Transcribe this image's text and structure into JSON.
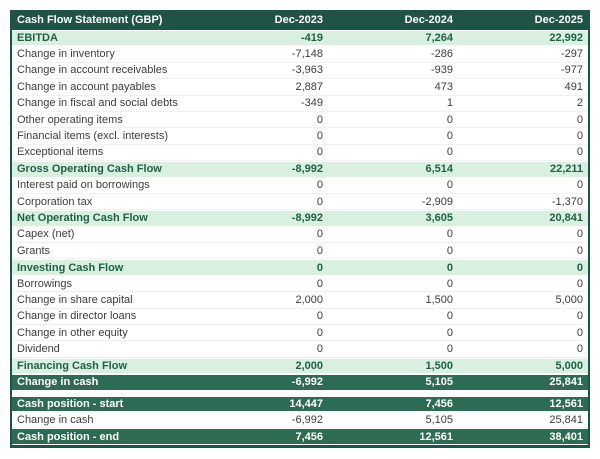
{
  "table": {
    "title": "Cash Flow Statement (GBP)",
    "columns": [
      "Dec-2023",
      "Dec-2024",
      "Dec-2025"
    ],
    "rows": [
      {
        "label": "EBITDA",
        "values": [
          "-419",
          "7,264",
          "22,992"
        ],
        "style": "highlight"
      },
      {
        "label": "Change in inventory",
        "values": [
          "-7,148",
          "-286",
          "-297"
        ],
        "style": "normal"
      },
      {
        "label": "Change in account receivables",
        "values": [
          "-3,963",
          "-939",
          "-977"
        ],
        "style": "normal"
      },
      {
        "label": "Change in account payables",
        "values": [
          "2,887",
          "473",
          "491"
        ],
        "style": "normal"
      },
      {
        "label": "Change in fiscal and social debts",
        "values": [
          "-349",
          "1",
          "2"
        ],
        "style": "normal"
      },
      {
        "label": "Other operating items",
        "values": [
          "0",
          "0",
          "0"
        ],
        "style": "normal"
      },
      {
        "label": "Financial items (excl. interests)",
        "values": [
          "0",
          "0",
          "0"
        ],
        "style": "normal"
      },
      {
        "label": "Exceptional items",
        "values": [
          "0",
          "0",
          "0"
        ],
        "style": "normal"
      },
      {
        "label": "Gross Operating Cash Flow",
        "values": [
          "-8,992",
          "6,514",
          "22,211"
        ],
        "style": "highlight"
      },
      {
        "label": "Interest paid on borrowings",
        "values": [
          "0",
          "0",
          "0"
        ],
        "style": "normal"
      },
      {
        "label": "Corporation tax",
        "values": [
          "0",
          "-2,909",
          "-1,370"
        ],
        "style": "normal"
      },
      {
        "label": "Net Operating Cash Flow",
        "values": [
          "-8,992",
          "3,605",
          "20,841"
        ],
        "style": "highlight"
      },
      {
        "label": "Capex (net)",
        "values": [
          "0",
          "0",
          "0"
        ],
        "style": "normal"
      },
      {
        "label": "Grants",
        "values": [
          "0",
          "0",
          "0"
        ],
        "style": "normal"
      },
      {
        "label": "Investing Cash Flow",
        "values": [
          "0",
          "0",
          "0"
        ],
        "style": "highlight"
      },
      {
        "label": "Borrowings",
        "values": [
          "0",
          "0",
          "0"
        ],
        "style": "normal"
      },
      {
        "label": "Change in share capital",
        "values": [
          "2,000",
          "1,500",
          "5,000"
        ],
        "style": "normal"
      },
      {
        "label": "Change in director loans",
        "values": [
          "0",
          "0",
          "0"
        ],
        "style": "normal"
      },
      {
        "label": "Change in other equity",
        "values": [
          "0",
          "0",
          "0"
        ],
        "style": "normal"
      },
      {
        "label": "Dividend",
        "values": [
          "0",
          "0",
          "0"
        ],
        "style": "normal"
      },
      {
        "label": "Financing Cash Flow",
        "values": [
          "2,000",
          "1,500",
          "5,000"
        ],
        "style": "highlight"
      },
      {
        "label": "Change in cash",
        "values": [
          "-6,992",
          "5,105",
          "25,841"
        ],
        "style": "summary"
      },
      {
        "style": "spacer"
      },
      {
        "label": "Cash position - start",
        "values": [
          "14,447",
          "7,456",
          "12,561"
        ],
        "style": "summary"
      },
      {
        "label": "Change in cash",
        "values": [
          "-6,992",
          "5,105",
          "25,841"
        ],
        "style": "normal"
      },
      {
        "label": "Cash position - end",
        "values": [
          "7,456",
          "12,561",
          "38,401"
        ],
        "style": "summary"
      }
    ]
  },
  "colors": {
    "header_bg": "#1e5345",
    "summary_bg": "#2e6b54",
    "highlight_bg": "#d9efdf",
    "highlight_text": "#1e6149",
    "body_text": "#3d3d3d"
  },
  "chart_data": {
    "type": "table",
    "title": "Cash Flow Statement (GBP)",
    "columns": [
      "Dec-2023",
      "Dec-2024",
      "Dec-2025"
    ],
    "series": [
      {
        "name": "EBITDA",
        "values": [
          -419,
          7264,
          22992
        ]
      },
      {
        "name": "Change in inventory",
        "values": [
          -7148,
          -286,
          -297
        ]
      },
      {
        "name": "Change in account receivables",
        "values": [
          -3963,
          -939,
          -977
        ]
      },
      {
        "name": "Change in account payables",
        "values": [
          2887,
          473,
          491
        ]
      },
      {
        "name": "Change in fiscal and social debts",
        "values": [
          -349,
          1,
          2
        ]
      },
      {
        "name": "Other operating items",
        "values": [
          0,
          0,
          0
        ]
      },
      {
        "name": "Financial items (excl. interests)",
        "values": [
          0,
          0,
          0
        ]
      },
      {
        "name": "Exceptional items",
        "values": [
          0,
          0,
          0
        ]
      },
      {
        "name": "Gross Operating Cash Flow",
        "values": [
          -8992,
          6514,
          22211
        ]
      },
      {
        "name": "Interest paid on borrowings",
        "values": [
          0,
          0,
          0
        ]
      },
      {
        "name": "Corporation tax",
        "values": [
          0,
          -2909,
          -1370
        ]
      },
      {
        "name": "Net Operating Cash Flow",
        "values": [
          -8992,
          3605,
          20841
        ]
      },
      {
        "name": "Capex (net)",
        "values": [
          0,
          0,
          0
        ]
      },
      {
        "name": "Grants",
        "values": [
          0,
          0,
          0
        ]
      },
      {
        "name": "Investing Cash Flow",
        "values": [
          0,
          0,
          0
        ]
      },
      {
        "name": "Borrowings",
        "values": [
          0,
          0,
          0
        ]
      },
      {
        "name": "Change in share capital",
        "values": [
          2000,
          1500,
          5000
        ]
      },
      {
        "name": "Change in director loans",
        "values": [
          0,
          0,
          0
        ]
      },
      {
        "name": "Change in other equity",
        "values": [
          0,
          0,
          0
        ]
      },
      {
        "name": "Dividend",
        "values": [
          0,
          0,
          0
        ]
      },
      {
        "name": "Financing Cash Flow",
        "values": [
          2000,
          1500,
          5000
        ]
      },
      {
        "name": "Change in cash",
        "values": [
          -6992,
          5105,
          25841
        ]
      },
      {
        "name": "Cash position - start",
        "values": [
          14447,
          7456,
          12561
        ]
      },
      {
        "name": "Change in cash",
        "values": [
          -6992,
          5105,
          25841
        ]
      },
      {
        "name": "Cash position - end",
        "values": [
          7456,
          12561,
          38401
        ]
      }
    ]
  }
}
